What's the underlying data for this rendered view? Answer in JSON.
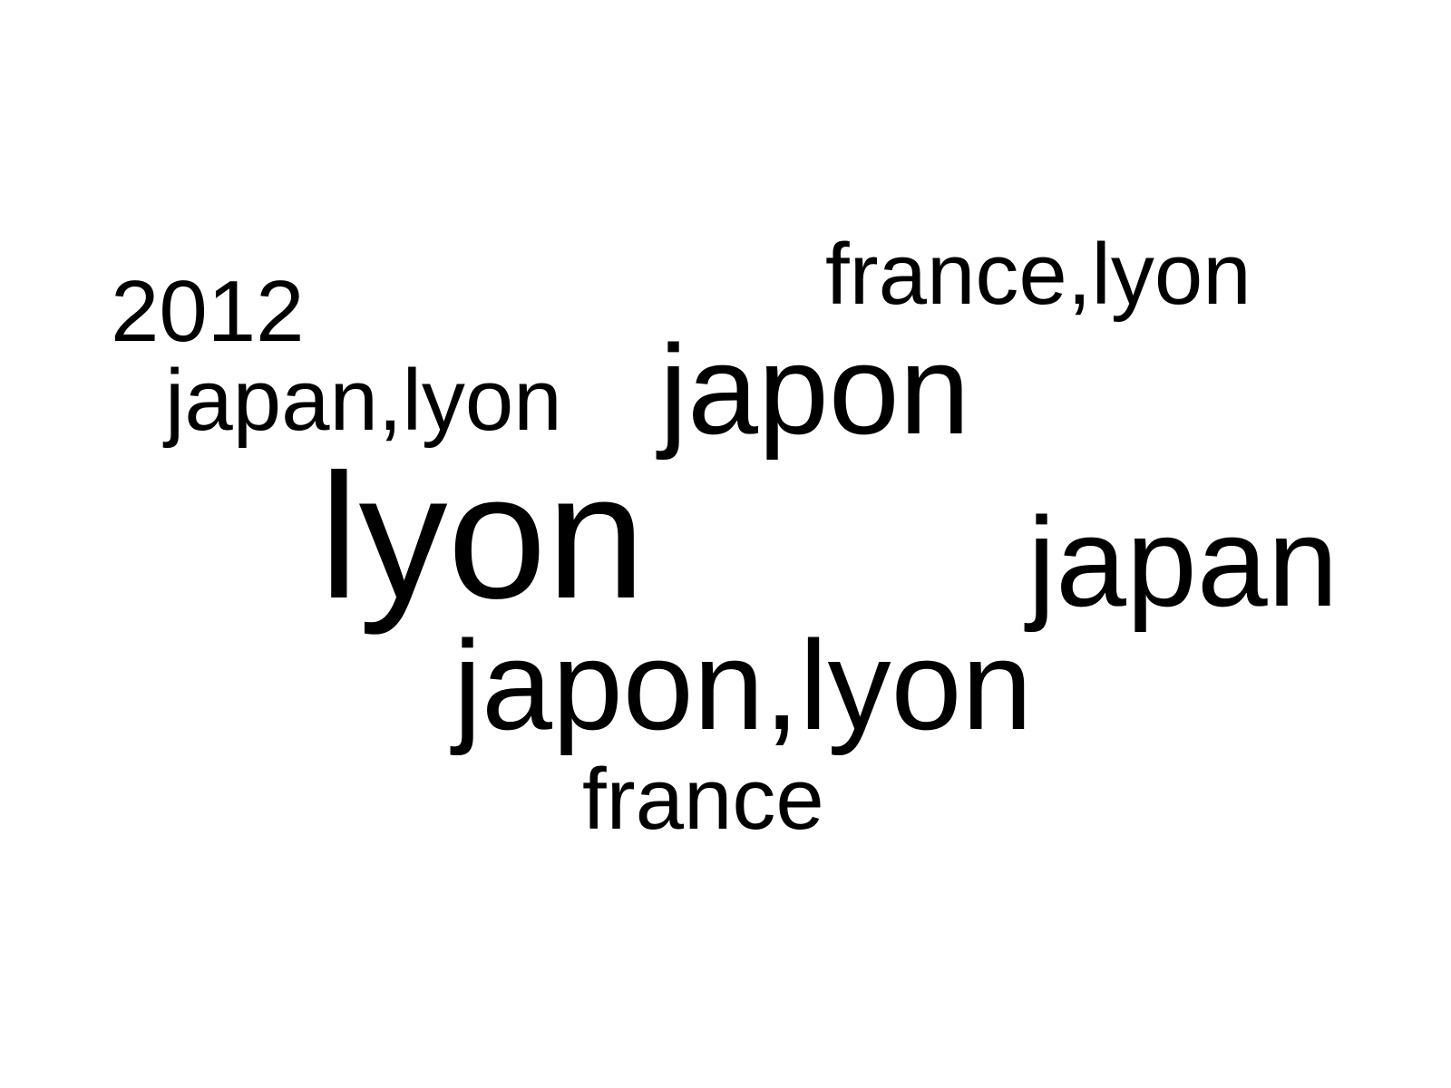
{
  "text_color": "#000000",
  "background_color": "#ffffff",
  "words": {
    "france_lyon": "france,lyon",
    "year": "2012",
    "japon": "japon",
    "japan_lyon": "japan,lyon",
    "lyon": "lyon",
    "japan": "japan",
    "japon_lyon": "japon,lyon",
    "france": "france"
  }
}
